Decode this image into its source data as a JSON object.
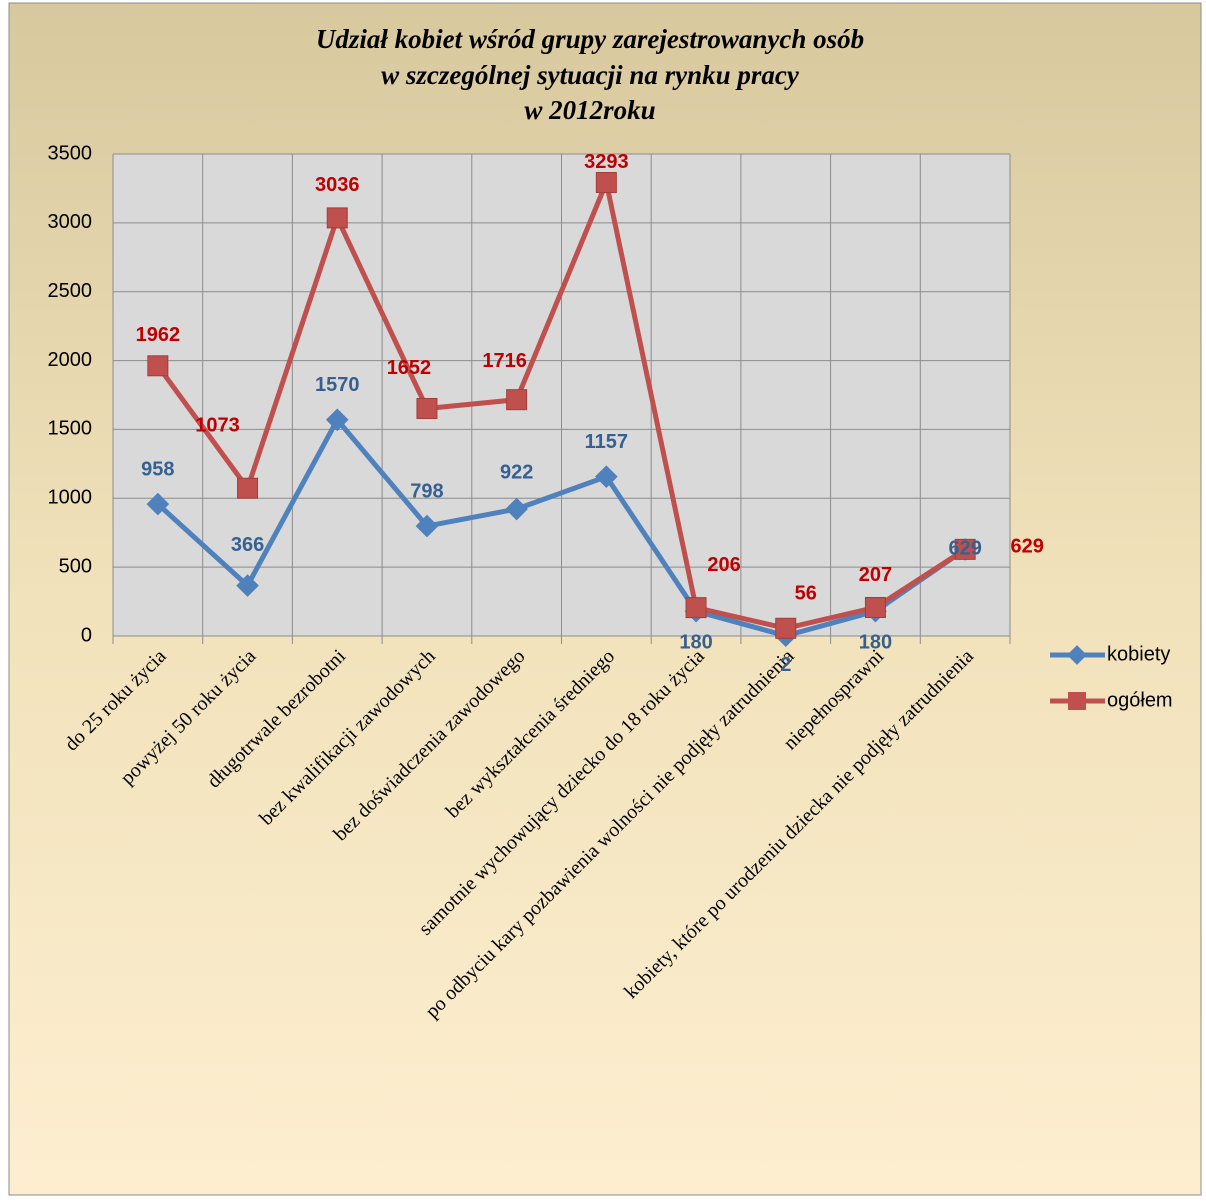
{
  "chart_data": {
    "type": "line",
    "title": [
      "Udział kobiet wśród grupy zarejestrowanych osób",
      "w szczególnej sytuacji na rynku pracy",
      "w 2012roku"
    ],
    "categories": [
      "do 25 roku życia",
      "powyżej 50 roku życia",
      "długotrwale bezrobotni",
      "bez kwalifikacji zawodowych",
      "bez doświadczenia zawodowego",
      "bez wykształcenia średniego",
      "samotnie wychowujący dziecko do 18 roku życia",
      "po odbyciu kary pozbawienia wolności nie podjęły zatrudnienia",
      "niepełnosprawni",
      "kobiety, które po urodzeniu dziecka nie podjęły zatrudnienia"
    ],
    "series": [
      {
        "name": "kobiety",
        "color": "#4f81bd",
        "label_color": "#366092",
        "values": [
          958,
          366,
          1570,
          798,
          922,
          1157,
          180,
          2,
          180,
          629
        ]
      },
      {
        "name": "ogółem",
        "color": "#c0504d",
        "label_color": "#c00000",
        "values": [
          1962,
          1073,
          3036,
          1652,
          1716,
          3293,
          206,
          56,
          207,
          629
        ]
      }
    ],
    "ylim": [
      0,
      3500
    ],
    "yticks": [
      0,
      500,
      1000,
      1500,
      2000,
      2500,
      3000,
      3500
    ],
    "grid": true,
    "legend": "right"
  }
}
